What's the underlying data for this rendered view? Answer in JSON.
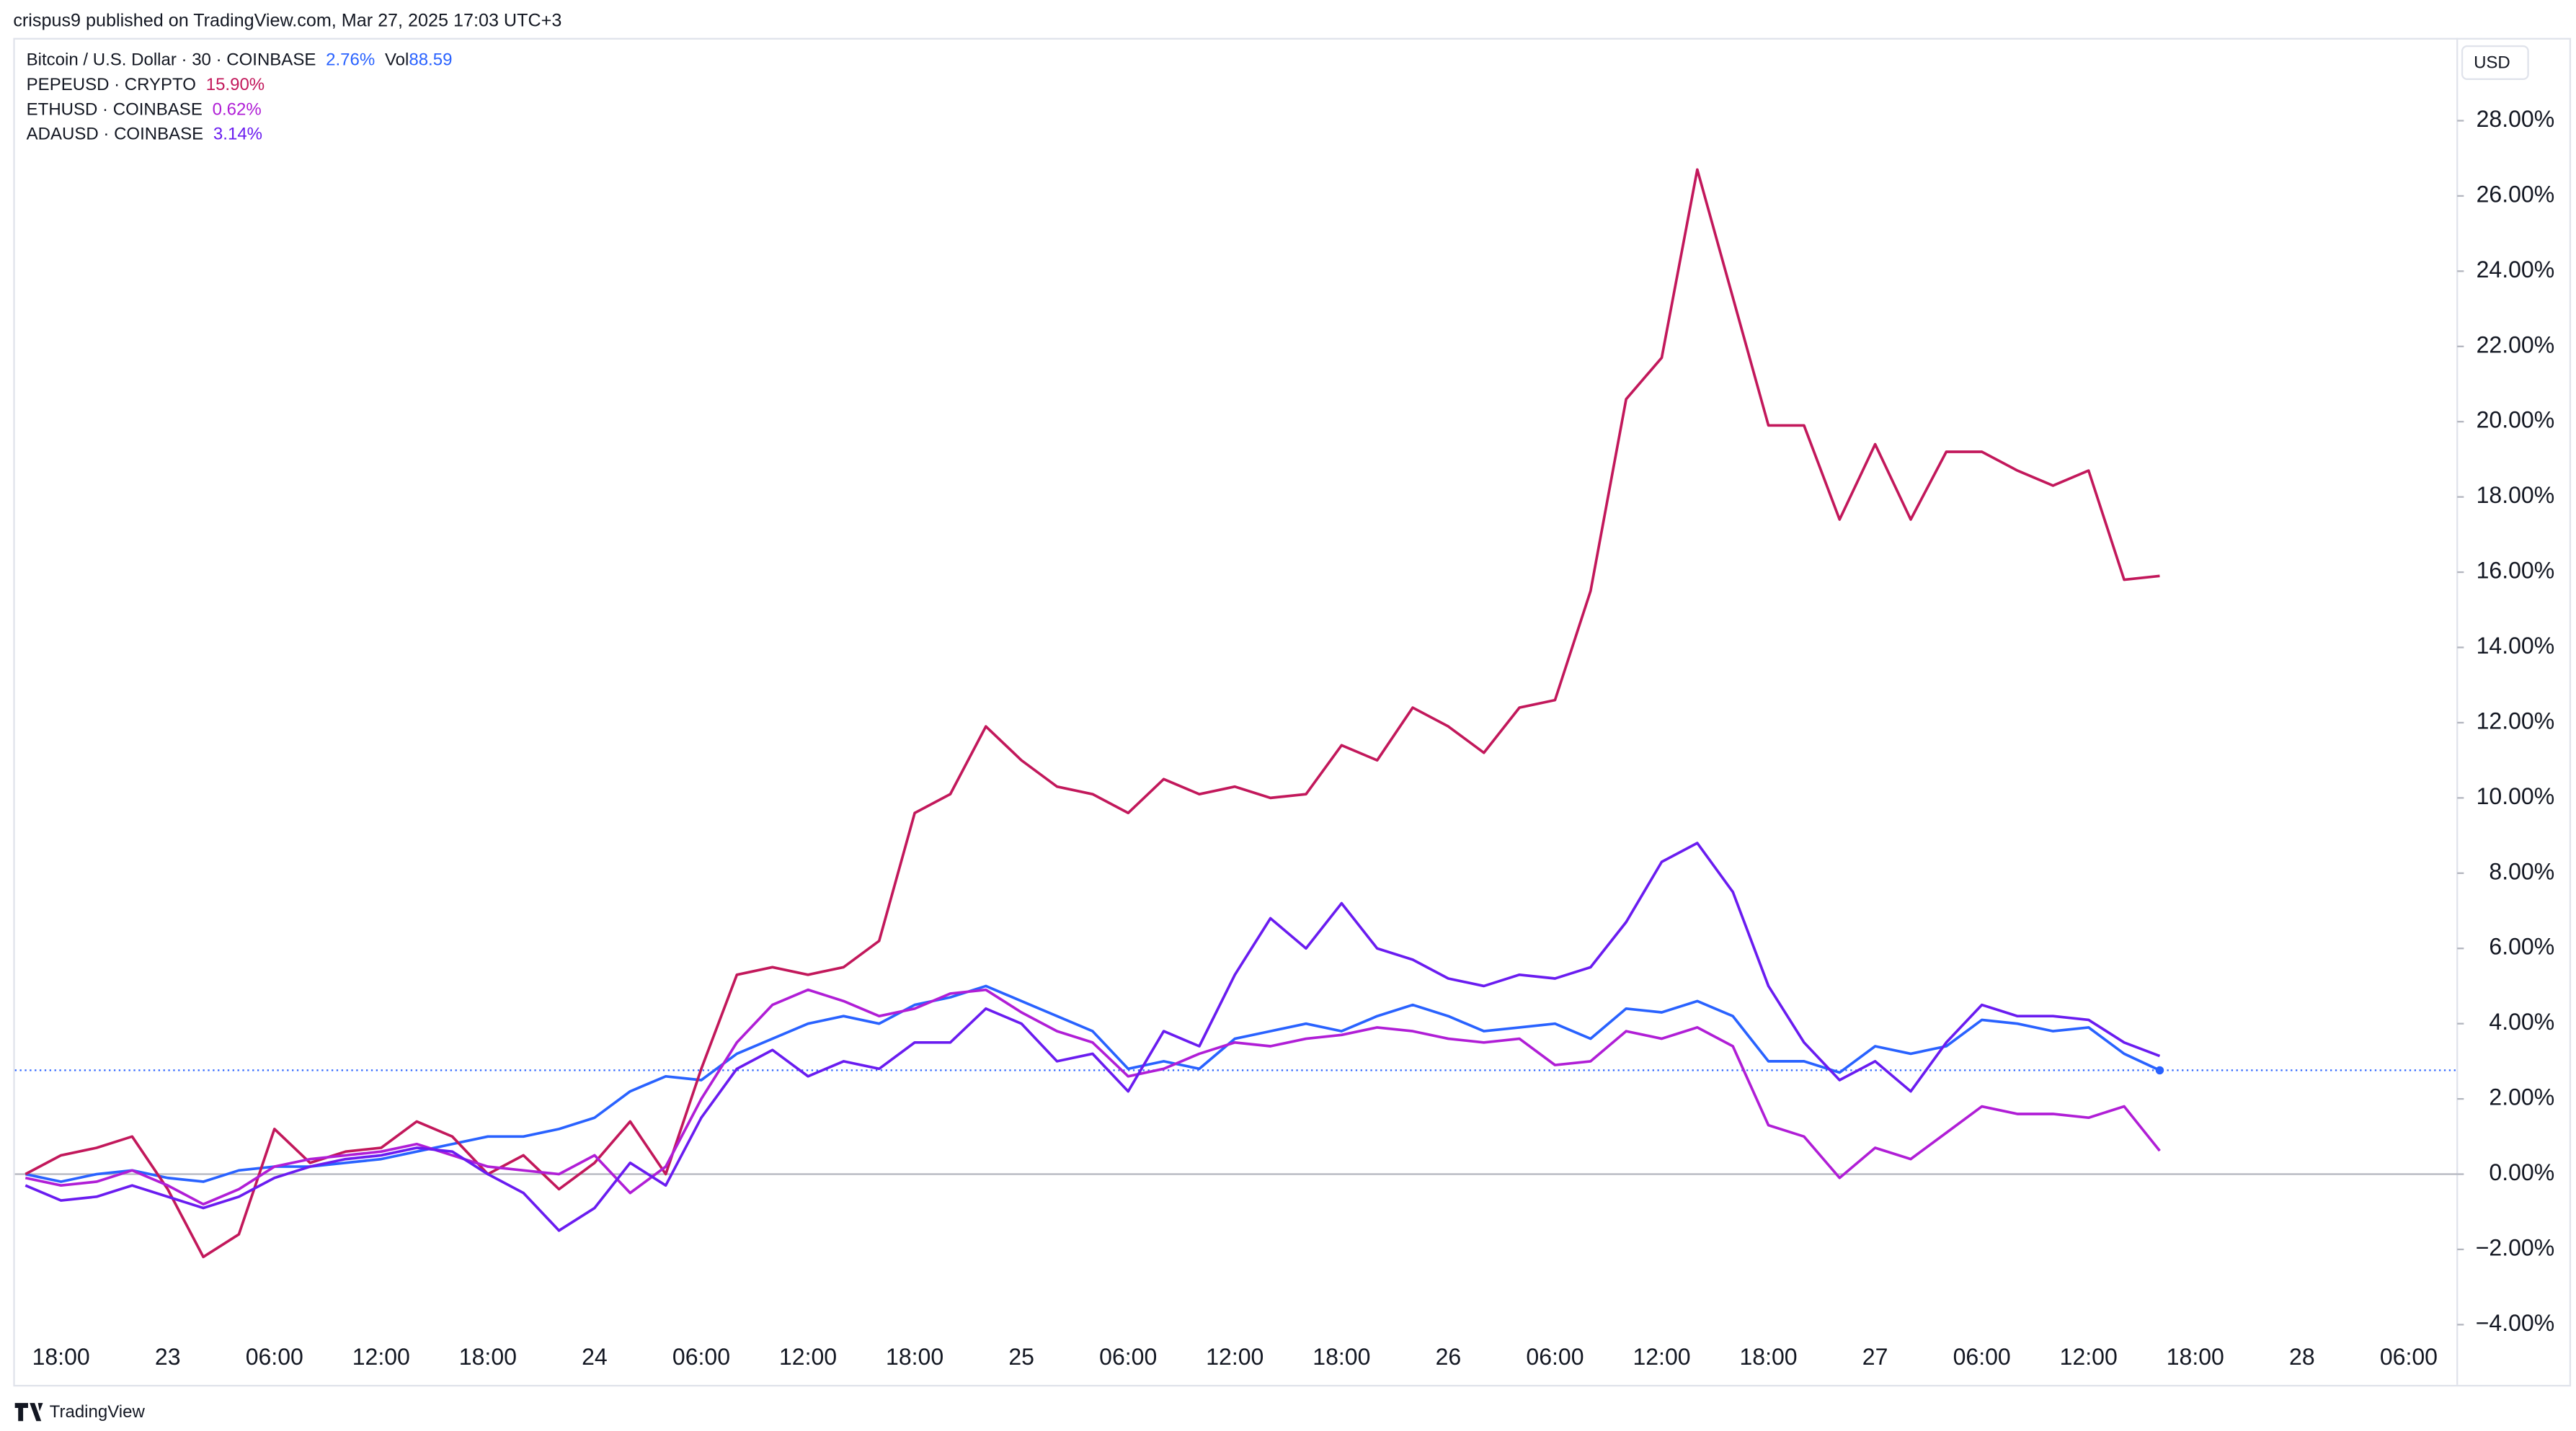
{
  "header": "crispus9 published on TradingView.com, Mar 27, 2025 17:03 UTC+3",
  "footer": "TradingView",
  "chart_data": {
    "type": "line",
    "y_unit": "USD",
    "categories": [
      null,
      "18:00",
      null,
      null,
      "23",
      null,
      null,
      "06:00",
      null,
      null,
      "12:00",
      null,
      null,
      "18:00",
      null,
      null,
      "24",
      null,
      null,
      "06:00",
      null,
      null,
      "12:00",
      null,
      null,
      "18:00",
      null,
      null,
      "25",
      null,
      null,
      "06:00",
      null,
      null,
      "12:00",
      null,
      null,
      "18:00",
      null,
      null,
      "26",
      null,
      null,
      "06:00",
      null,
      null,
      "12:00",
      null,
      null,
      "18:00",
      null,
      null,
      "27",
      null,
      null,
      "06:00",
      null,
      null,
      "12:00",
      null,
      null,
      "18:00",
      null,
      null,
      "28",
      null,
      null,
      "06:00",
      null
    ],
    "ylim": [
      -5.6,
      30.2
    ],
    "yticks": [
      {
        "value": -4,
        "label": "−4.00%"
      },
      {
        "value": -2,
        "label": "−2.00%"
      },
      {
        "value": 0,
        "label": "0.00%"
      },
      {
        "value": 2,
        "label": "2.00%"
      },
      {
        "value": 4,
        "label": "4.00%"
      },
      {
        "value": 6,
        "label": "6.00%"
      },
      {
        "value": 8,
        "label": "8.00%"
      },
      {
        "value": 10,
        "label": "10.00%"
      },
      {
        "value": 12,
        "label": "12.00%"
      },
      {
        "value": 14,
        "label": "14.00%"
      },
      {
        "value": 16,
        "label": "16.00%"
      },
      {
        "value": 18,
        "label": "18.00%"
      },
      {
        "value": 20,
        "label": "20.00%"
      },
      {
        "value": 22,
        "label": "22.00%"
      },
      {
        "value": 24,
        "label": "24.00%"
      },
      {
        "value": 26,
        "label": "26.00%"
      },
      {
        "value": 28,
        "label": "28.00%"
      }
    ],
    "baseline": 0,
    "volume_label": "Vol",
    "volume": 88.59,
    "series": [
      {
        "name": "Bitcoin / U.S. Dollar · 30 · COINBASE",
        "color": "#2962ff",
        "change": {
          "value": 2.76,
          "label": "2.76%"
        },
        "values": [
          0,
          -0.2,
          0,
          0.1,
          -0.1,
          -0.2,
          0.1,
          0.2,
          0.2,
          0.3,
          0.4,
          0.6,
          0.8,
          1.0,
          1.0,
          1.2,
          1.5,
          2.2,
          2.6,
          2.5,
          3.2,
          3.6,
          4.0,
          4.2,
          4.0,
          4.5,
          4.7,
          5.0,
          4.6,
          4.2,
          3.8,
          2.8,
          3.0,
          2.8,
          3.6,
          3.8,
          4.0,
          3.8,
          4.2,
          4.5,
          4.2,
          3.8,
          3.9,
          4.0,
          3.6,
          4.4,
          4.3,
          4.6,
          4.2,
          3.0,
          3.0,
          2.7,
          3.4,
          3.2,
          3.4,
          4.1,
          4.0,
          3.8,
          3.9,
          3.2,
          2.76,
          null,
          null,
          null,
          null,
          null,
          null,
          null,
          null
        ]
      },
      {
        "name": "PEPEUSD · CRYPTO",
        "color": "#c2185b",
        "change": {
          "value": 15.9,
          "label": "15.90%"
        },
        "values": [
          0,
          0.5,
          0.7,
          1.0,
          -0.4,
          -2.2,
          -1.6,
          1.2,
          0.3,
          0.6,
          0.7,
          1.4,
          1.0,
          0.0,
          0.5,
          -0.4,
          0.3,
          1.4,
          0.0,
          2.8,
          5.3,
          5.5,
          5.3,
          5.5,
          6.2,
          9.6,
          10.1,
          11.9,
          11.0,
          10.3,
          10.1,
          9.6,
          10.5,
          10.1,
          10.3,
          10.0,
          10.1,
          11.4,
          11.0,
          12.4,
          11.9,
          11.2,
          12.4,
          12.6,
          15.5,
          20.6,
          21.7,
          26.7,
          23.3,
          19.9,
          19.9,
          17.4,
          19.4,
          17.4,
          19.2,
          19.2,
          18.7,
          18.3,
          18.7,
          15.8,
          15.9,
          null,
          null,
          null,
          null,
          null,
          null,
          null,
          null
        ]
      },
      {
        "name": "ETHUSD · COINBASE",
        "color": "#b01ed6",
        "change": {
          "value": 0.62,
          "label": "0.62%"
        },
        "values": [
          -0.1,
          -0.3,
          -0.2,
          0.1,
          -0.3,
          -0.8,
          -0.4,
          0.2,
          0.4,
          0.5,
          0.6,
          0.8,
          0.5,
          0.2,
          0.1,
          0.0,
          0.5,
          -0.5,
          0.2,
          2.0,
          3.5,
          4.5,
          4.9,
          4.6,
          4.2,
          4.4,
          4.8,
          4.9,
          4.3,
          3.8,
          3.5,
          2.6,
          2.8,
          3.2,
          3.5,
          3.4,
          3.6,
          3.7,
          3.9,
          3.8,
          3.6,
          3.5,
          3.6,
          2.9,
          3.0,
          3.8,
          3.6,
          3.9,
          3.4,
          1.3,
          1.0,
          -0.1,
          0.7,
          0.4,
          1.1,
          1.8,
          1.6,
          1.6,
          1.5,
          1.8,
          0.62,
          null,
          null,
          null,
          null,
          null,
          null,
          null,
          null
        ]
      },
      {
        "name": "ADAUSD · COINBASE",
        "color": "#6a1cf0",
        "change": {
          "value": 3.14,
          "label": "3.14%"
        },
        "values": [
          -0.3,
          -0.7,
          -0.6,
          -0.3,
          -0.6,
          -0.9,
          -0.6,
          -0.1,
          0.2,
          0.4,
          0.5,
          0.7,
          0.6,
          0.0,
          -0.5,
          -1.5,
          -0.9,
          0.3,
          -0.3,
          1.5,
          2.8,
          3.3,
          2.6,
          3.0,
          2.8,
          3.5,
          3.5,
          4.4,
          4.0,
          3.0,
          3.2,
          2.2,
          3.8,
          3.4,
          5.3,
          6.8,
          6.0,
          7.2,
          6.0,
          5.7,
          5.2,
          5.0,
          5.3,
          5.2,
          5.5,
          6.7,
          8.3,
          8.8,
          7.5,
          5.0,
          3.5,
          2.5,
          3.0,
          2.2,
          3.5,
          4.5,
          4.2,
          4.2,
          4.1,
          3.5,
          3.14,
          null,
          null,
          null,
          null,
          null,
          null,
          null,
          null
        ]
      }
    ]
  }
}
